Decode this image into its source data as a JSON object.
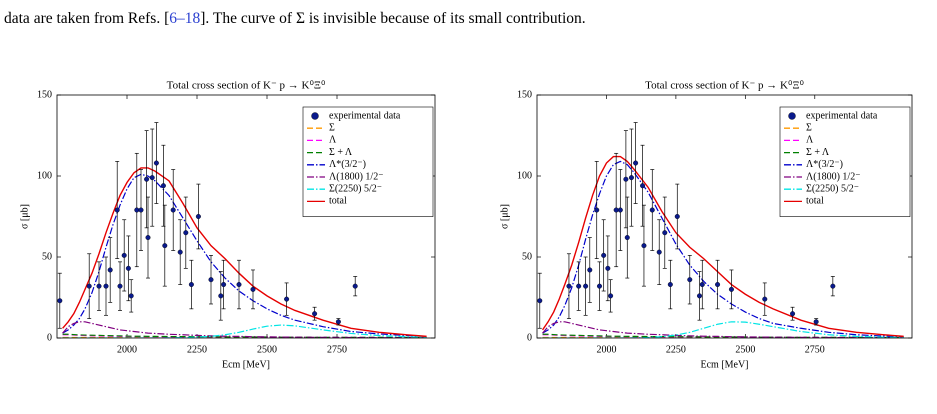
{
  "caption_parts": [
    "data are taken from Refs. [",
    "6–18",
    "]. The curve of Σ is invisible because of its small contribution."
  ],
  "chart_data": [
    {
      "type": "line",
      "title": "Total cross section of K⁻ p → K⁰Ξ⁰",
      "xlabel": "Ecm [MeV]",
      "ylabel": "σ [μb]",
      "xlim": [
        1750,
        3100
      ],
      "ylim": [
        0,
        150
      ],
      "xticks": [
        2000,
        2250,
        2500,
        2750
      ],
      "yticks": [
        0,
        50,
        100,
        150
      ],
      "legend": "upper right",
      "x": [
        1770,
        1790,
        1810,
        1830,
        1850,
        1875,
        1900,
        1925,
        1950,
        1975,
        2000,
        2025,
        2050,
        2075,
        2100,
        2150,
        2200,
        2250,
        2300,
        2350,
        2400,
        2450,
        2500,
        2550,
        2600,
        2700,
        2800,
        2900,
        3000,
        3070
      ],
      "points": {
        "name": "experimental data",
        "color": "#0a1a8c",
        "x": [
          1760,
          1865,
          1900,
          1925,
          1940,
          1965,
          1975,
          1990,
          2005,
          2015,
          2035,
          2050,
          2070,
          2075,
          2090,
          2105,
          2130,
          2135,
          2165,
          2190,
          2210,
          2230,
          2255,
          2300,
          2335,
          2345,
          2400,
          2450,
          2570,
          2670,
          2755,
          2815
        ],
        "values": [
          23,
          32,
          32,
          32,
          42,
          79,
          32,
          51,
          43,
          26,
          79,
          79,
          98,
          62,
          99,
          108,
          94,
          57,
          79,
          53,
          65,
          33,
          75,
          36,
          26,
          33,
          33,
          30,
          24,
          15,
          10,
          32
        ],
        "errors": [
          17,
          20,
          15,
          18,
          20,
          30,
          15,
          22,
          20,
          10,
          35,
          25,
          30,
          25,
          30,
          25,
          25,
          25,
          25,
          20,
          22,
          15,
          20,
          15,
          15,
          15,
          15,
          12,
          10,
          4,
          2,
          6
        ]
      },
      "series": [
        {
          "name": "Σ",
          "color": "#ff9900",
          "dash": "dashed",
          "values": [
            0.3,
            0.3,
            0.3,
            0.3,
            0.3,
            0.3,
            0.3,
            0.3,
            0.2,
            0.2,
            0.2,
            0.2,
            0.2,
            0.2,
            0.2,
            0.2,
            0.2,
            0.2,
            0.1,
            0.1,
            0.1,
            0.1,
            0.1,
            0.1,
            0.1,
            0.1,
            0.1,
            0.1,
            0.1,
            0.1
          ]
        },
        {
          "name": "Λ",
          "color": "#ff00ff",
          "dash": "dashed",
          "values": [
            2,
            2,
            1.8,
            1.6,
            1.5,
            1.4,
            1.3,
            1.2,
            1.1,
            1,
            1,
            0.9,
            0.9,
            0.8,
            0.8,
            0.7,
            0.7,
            0.6,
            0.6,
            0.5,
            0.5,
            0.5,
            0.4,
            0.4,
            0.4,
            0.3,
            0.3,
            0.3,
            0.2,
            0.2
          ]
        },
        {
          "name": "Σ + Λ",
          "color": "#008000",
          "dash": "dashed",
          "values": [
            2.3,
            2.3,
            2.1,
            1.9,
            1.8,
            1.7,
            1.6,
            1.5,
            1.4,
            1.3,
            1.2,
            1.1,
            1.1,
            1,
            1,
            0.9,
            0.9,
            0.8,
            0.8,
            0.7,
            0.7,
            0.6,
            0.6,
            0.5,
            0.5,
            0.4,
            0.4,
            0.4,
            0.3,
            0.3
          ]
        },
        {
          "name": "Λ*(3/2⁻)",
          "color": "#0000cc",
          "dash": "dashdot",
          "values": [
            3,
            5,
            8,
            12,
            18,
            28,
            41,
            56,
            70,
            82,
            92,
            99,
            101,
            100,
            97,
            88,
            74,
            60,
            47,
            37,
            29,
            23,
            18,
            14,
            11,
            7,
            4,
            2.5,
            1.5,
            1
          ]
        },
        {
          "name": "Λ(1800) 1/2⁻",
          "color": "#800080",
          "dash": "dashdot",
          "values": [
            3,
            7,
            9,
            10,
            10,
            9,
            8,
            7,
            6,
            5,
            4.5,
            4,
            3.5,
            3,
            2.8,
            2.3,
            2,
            1.6,
            1.3,
            1.1,
            1,
            0.8,
            0.7,
            0.6,
            0.5,
            0.4,
            0.3,
            0.2,
            0.2,
            0.1
          ]
        },
        {
          "name": "Σ(2250) 5/2⁻",
          "color": "#00e5e5",
          "dash": "dashdot",
          "values": [
            0,
            0,
            0,
            0,
            0,
            0,
            0,
            0,
            0,
            0,
            0,
            0,
            0,
            0,
            0,
            0.1,
            0.2,
            0.5,
            1,
            2,
            3.5,
            5.5,
            7.3,
            8,
            7.5,
            5,
            2.8,
            1.5,
            0.8,
            0.5
          ]
        },
        {
          "name": "total",
          "color": "#e60000",
          "dash": "solid",
          "values": [
            6,
            10,
            15,
            22,
            30,
            40,
            52,
            65,
            77,
            88,
            96,
            102,
            105,
            105,
            103,
            97,
            83,
            68,
            57,
            49,
            40,
            32,
            26,
            21,
            17,
            11,
            6,
            3.5,
            2,
            1
          ]
        }
      ]
    },
    {
      "type": "line",
      "title": "Total cross section of K⁻ p → K⁰Ξ⁰",
      "xlabel": "Ecm [MeV]",
      "ylabel": "σ [μb]",
      "xlim": [
        1750,
        3100
      ],
      "ylim": [
        0,
        150
      ],
      "xticks": [
        2000,
        2250,
        2500,
        2750
      ],
      "yticks": [
        0,
        50,
        100,
        150
      ],
      "legend": "upper right",
      "x": [
        1770,
        1790,
        1810,
        1830,
        1850,
        1875,
        1900,
        1925,
        1950,
        1975,
        2000,
        2025,
        2050,
        2075,
        2100,
        2150,
        2200,
        2250,
        2300,
        2350,
        2400,
        2450,
        2500,
        2550,
        2600,
        2700,
        2800,
        2900,
        3000,
        3070
      ],
      "points": {
        "name": "experimental data",
        "color": "#0a1a8c",
        "x": [
          1760,
          1865,
          1900,
          1925,
          1940,
          1965,
          1975,
          1990,
          2005,
          2015,
          2035,
          2050,
          2070,
          2075,
          2090,
          2105,
          2130,
          2135,
          2165,
          2190,
          2210,
          2230,
          2255,
          2300,
          2335,
          2345,
          2400,
          2450,
          2570,
          2670,
          2755,
          2815
        ],
        "values": [
          23,
          32,
          32,
          32,
          42,
          79,
          32,
          51,
          43,
          26,
          79,
          79,
          98,
          62,
          99,
          108,
          94,
          57,
          79,
          53,
          65,
          33,
          75,
          36,
          26,
          33,
          33,
          30,
          24,
          15,
          10,
          32
        ],
        "errors": [
          17,
          20,
          15,
          18,
          20,
          30,
          15,
          22,
          20,
          10,
          35,
          25,
          30,
          25,
          30,
          25,
          25,
          25,
          25,
          20,
          22,
          15,
          20,
          15,
          15,
          15,
          15,
          12,
          10,
          4,
          2,
          6
        ]
      },
      "series": [
        {
          "name": "Σ",
          "color": "#ff9900",
          "dash": "dashed",
          "values": [
            0.3,
            0.3,
            0.3,
            0.3,
            0.3,
            0.3,
            0.3,
            0.3,
            0.2,
            0.2,
            0.2,
            0.2,
            0.2,
            0.2,
            0.2,
            0.2,
            0.2,
            0.2,
            0.1,
            0.1,
            0.1,
            0.1,
            0.1,
            0.1,
            0.1,
            0.1,
            0.1,
            0.1,
            0.1,
            0.1
          ]
        },
        {
          "name": "Λ",
          "color": "#ff00ff",
          "dash": "dashed",
          "values": [
            2,
            2,
            1.8,
            1.6,
            1.5,
            1.4,
            1.3,
            1.2,
            1.1,
            1,
            1,
            0.9,
            0.9,
            0.8,
            0.8,
            0.7,
            0.7,
            0.6,
            0.6,
            0.5,
            0.5,
            0.5,
            0.4,
            0.4,
            0.4,
            0.3,
            0.3,
            0.3,
            0.2,
            0.2
          ]
        },
        {
          "name": "Σ + Λ",
          "color": "#008000",
          "dash": "dashed",
          "values": [
            2.3,
            2.3,
            2.1,
            1.9,
            1.8,
            1.7,
            1.6,
            1.5,
            1.4,
            1.3,
            1.2,
            1.1,
            1.1,
            1,
            1,
            0.9,
            0.9,
            0.8,
            0.8,
            0.7,
            0.7,
            0.6,
            0.6,
            0.5,
            0.5,
            0.4,
            0.4,
            0.4,
            0.3,
            0.3
          ]
        },
        {
          "name": "Λ*(3/2⁻)",
          "color": "#0000cc",
          "dash": "dashdot",
          "values": [
            3,
            5,
            8,
            13,
            20,
            31,
            45,
            61,
            76,
            89,
            100,
            107,
            109,
            107,
            102,
            90,
            74,
            58,
            45,
            35,
            27,
            21,
            16,
            12,
            9,
            6,
            3.5,
            2,
            1.2,
            0.8
          ]
        },
        {
          "name": "Λ(1800) 1/2⁻",
          "color": "#800080",
          "dash": "dashdot",
          "values": [
            3,
            7,
            9,
            10,
            10,
            9,
            8,
            7,
            6,
            5,
            4.5,
            4,
            3.5,
            3,
            2.8,
            2.3,
            2,
            1.6,
            1.3,
            1.1,
            1,
            0.8,
            0.7,
            0.6,
            0.5,
            0.4,
            0.3,
            0.2,
            0.2,
            0.1
          ]
        },
        {
          "name": "Σ(2250) 5/2⁻",
          "color": "#00e5e5",
          "dash": "dashdot",
          "values": [
            0,
            0,
            0,
            0,
            0,
            0,
            0,
            0,
            0,
            0,
            0,
            0,
            0,
            0,
            0.1,
            0.3,
            0.8,
            1.8,
            3.5,
            6,
            8.5,
            10,
            9.8,
            8.5,
            7,
            4,
            2,
            1,
            0.5,
            0.3
          ]
        },
        {
          "name": "total",
          "color": "#e60000",
          "dash": "solid",
          "values": [
            5,
            10,
            16,
            24,
            33,
            45,
            59,
            74,
            88,
            100,
            108,
            112,
            112,
            109,
            104,
            93,
            78,
            65,
            56,
            49,
            41,
            33,
            27,
            22,
            18,
            11,
            6,
            3.5,
            2,
            1
          ]
        }
      ]
    }
  ]
}
